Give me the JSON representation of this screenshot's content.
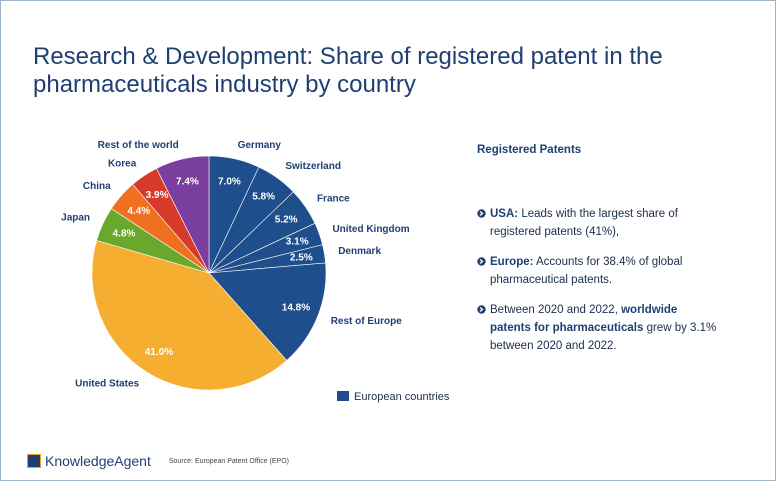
{
  "chart_data": {
    "type": "pie",
    "title": "Research & Development: Share of registered patent in the pharmaceuticals industry by country",
    "categories": [
      "Germany",
      "Switzerland",
      "France",
      "United Kingdom",
      "Denmark",
      "Rest of Europe",
      "United States",
      "Japan",
      "China",
      "Korea",
      "Rest of the world"
    ],
    "values": [
      7.0,
      5.8,
      5.2,
      3.1,
      2.5,
      14.8,
      41.0,
      4.8,
      4.4,
      3.9,
      7.4
    ],
    "value_labels": [
      "7.0%",
      "5.8%",
      "5.2%",
      "3.1%",
      "2.5%",
      "14.8%",
      "41.0%",
      "4.8%",
      "4.4%",
      "3.9%",
      "7.4%"
    ],
    "colors": [
      "#1f4e8c",
      "#1f4e8c",
      "#1f4e8c",
      "#1f4e8c",
      "#1f4e8c",
      "#1f4e8c",
      "#f5ae2f",
      "#6aa82c",
      "#f07022",
      "#d63a2a",
      "#7a3f9e"
    ],
    "legend": {
      "label": "European countries",
      "color": "#1f4e8c"
    }
  },
  "panel": {
    "title": "Registered Patents",
    "bullets": [
      [
        {
          "text": "USA:",
          "bold": true
        },
        {
          "text": " Leads with the largest share of registered patents (41%),",
          "bold": false
        }
      ],
      [
        {
          "text": "Europe:",
          "bold": true
        },
        {
          "text": " Accounts for 38.4% of global pharmaceutical patents.",
          "bold": false
        }
      ],
      [
        {
          "text": "Between 2020 and 2022, ",
          "bold": false
        },
        {
          "text": "worldwide patents for pharmaceuticals",
          "bold": true
        },
        {
          "text": " grew by 3.1% between 2020 and 2022.",
          "bold": false
        }
      ]
    ]
  },
  "footer": {
    "logo": "KnowledgeAgent",
    "source": "Source: European Patent Office (EPO)"
  }
}
